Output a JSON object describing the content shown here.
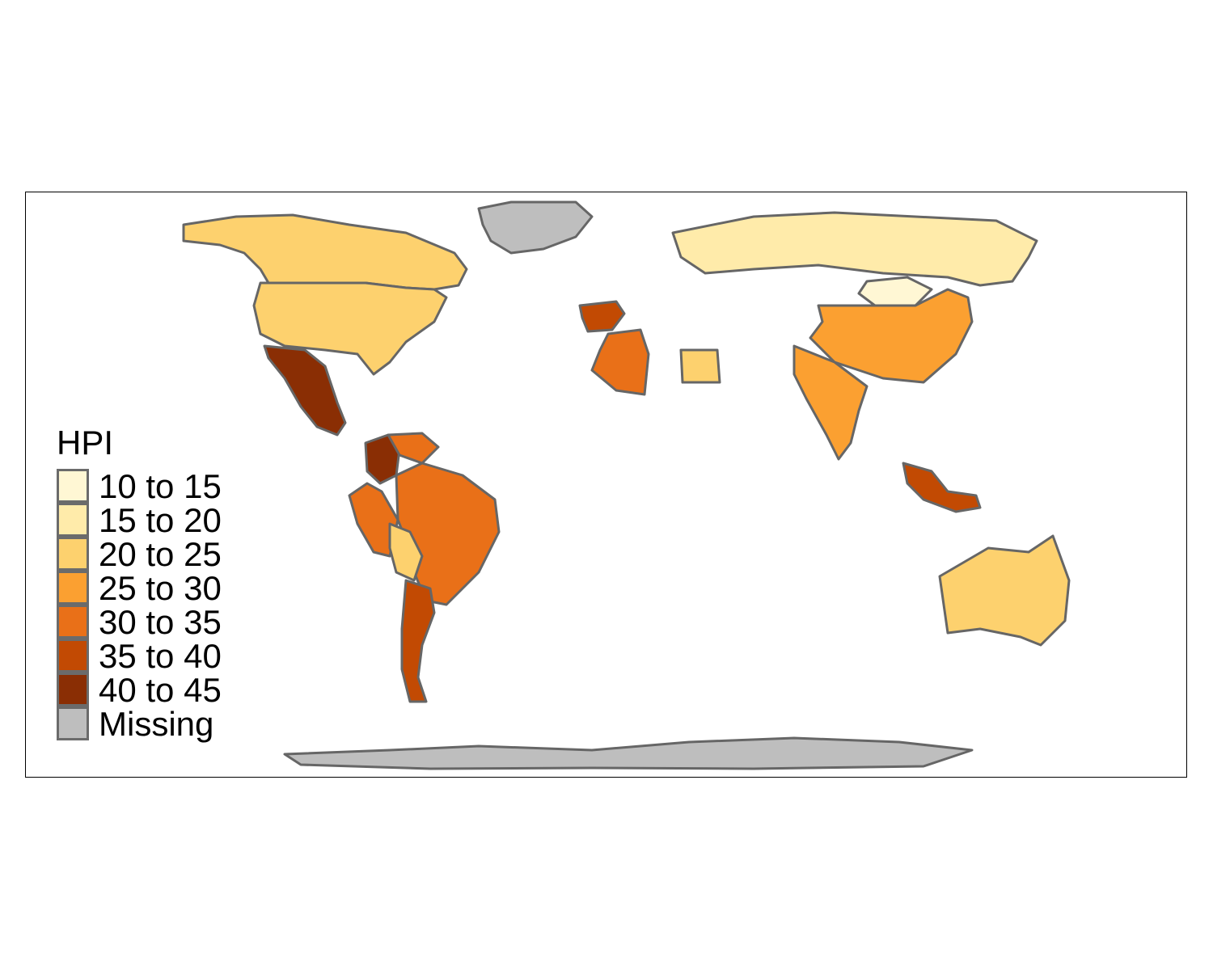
{
  "map": {
    "legend": {
      "title": "HPI",
      "items": [
        {
          "label": "10 to 15",
          "color": "#FFF7D4"
        },
        {
          "label": "15 to 20",
          "color": "#FFEBAA"
        },
        {
          "label": "20 to 25",
          "color": "#FDD16E"
        },
        {
          "label": "25 to 30",
          "color": "#FBA031"
        },
        {
          "label": "30 to 35",
          "color": "#E97018"
        },
        {
          "label": "35 to 40",
          "color": "#C24A03"
        },
        {
          "label": "40 to 45",
          "color": "#8A2E04"
        },
        {
          "label": "Missing",
          "color": "#BEBEBE"
        }
      ]
    },
    "border_color": "#666666",
    "regions": [
      {
        "name": "Greenland",
        "class": "Missing"
      },
      {
        "name": "Canada",
        "class": "20 to 25"
      },
      {
        "name": "United States",
        "class": "20 to 25"
      },
      {
        "name": "Mexico",
        "class": "40 to 45"
      },
      {
        "name": "Colombia",
        "class": "40 to 45"
      },
      {
        "name": "Venezuela",
        "class": "30 to 35"
      },
      {
        "name": "Brazil",
        "class": "30 to 35"
      },
      {
        "name": "Peru",
        "class": "30 to 35"
      },
      {
        "name": "Bolivia",
        "class": "20 to 25"
      },
      {
        "name": "Argentina",
        "class": "35 to 40"
      },
      {
        "name": "Russia",
        "class": "15 to 20"
      },
      {
        "name": "Mongolia",
        "class": "10 to 15"
      },
      {
        "name": "China",
        "class": "25 to 30"
      },
      {
        "name": "India",
        "class": "25 to 30"
      },
      {
        "name": "Spain",
        "class": "35 to 40"
      },
      {
        "name": "Algeria",
        "class": "30 to 35"
      },
      {
        "name": "Egypt",
        "class": "20 to 25"
      },
      {
        "name": "Australia",
        "class": "20 to 25"
      },
      {
        "name": "Indonesia",
        "class": "35 to 40"
      },
      {
        "name": "Antarctica",
        "class": "Missing"
      }
    ]
  }
}
